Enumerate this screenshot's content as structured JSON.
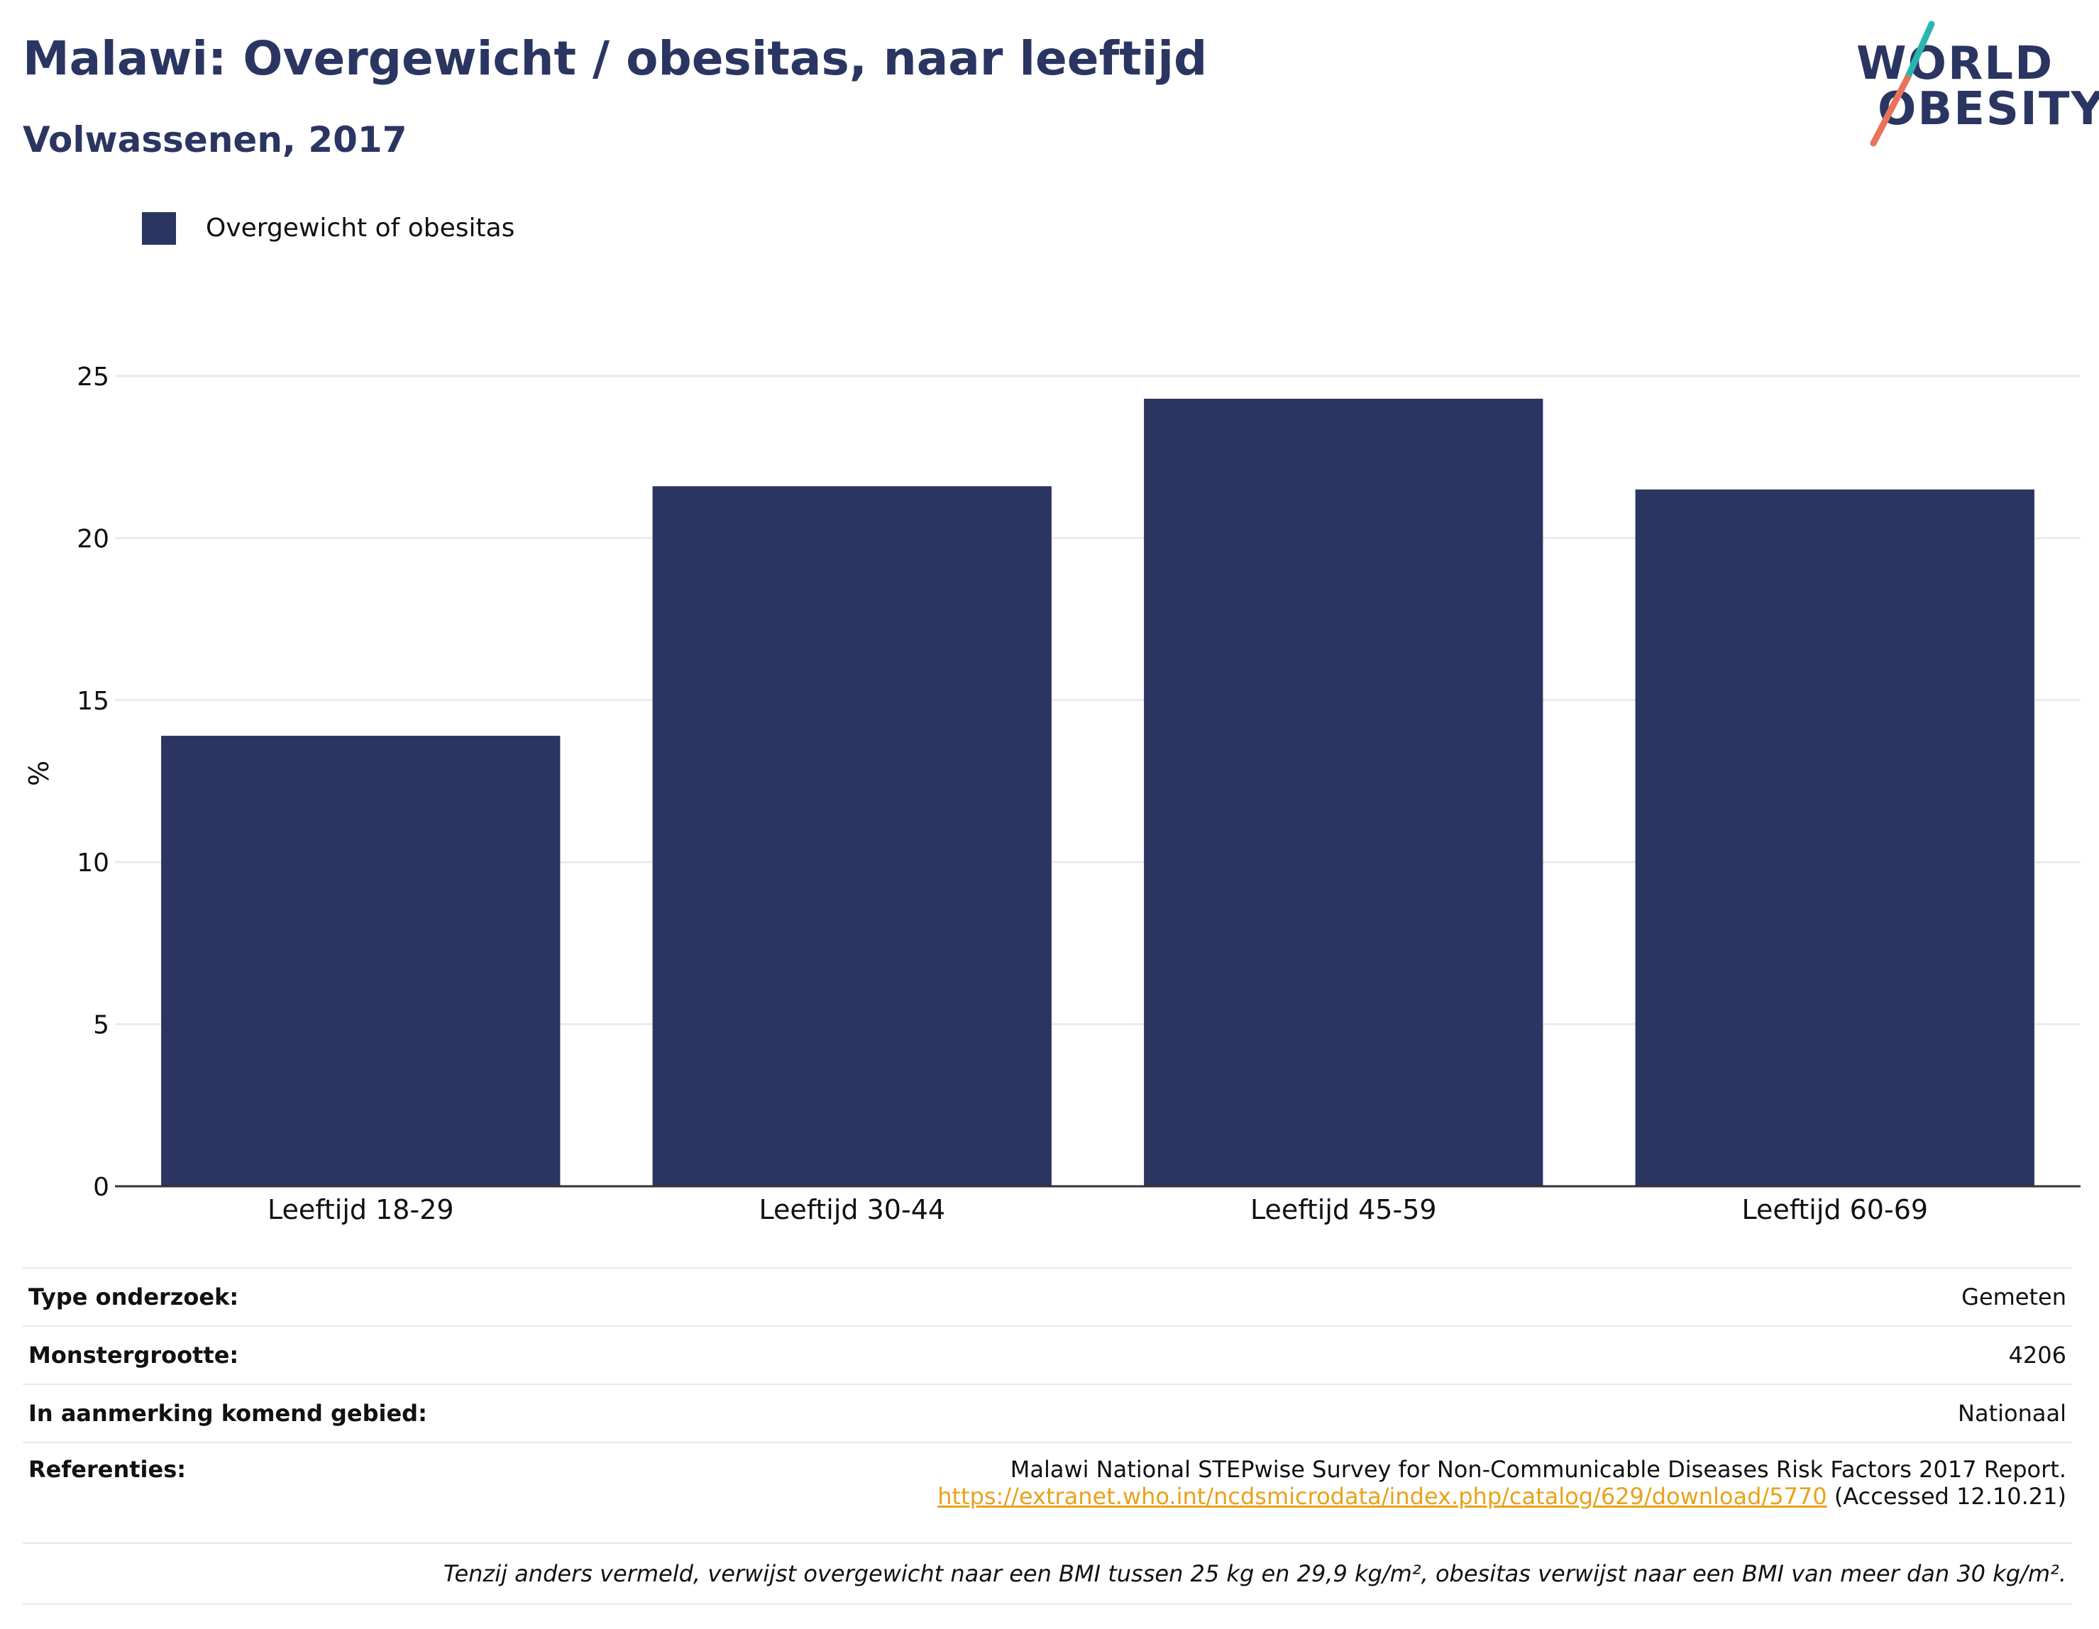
{
  "header": {
    "title": "Malawi: Overgewicht / obesitas, naar leeftijd",
    "subtitle": "Volwassenen, 2017"
  },
  "logo": {
    "line1": "WORLD",
    "line2": "OBESITY",
    "colors": {
      "text": "#2b3561",
      "slash_top": "#2ab6b0",
      "slash_bottom": "#e8735a"
    }
  },
  "legend": {
    "label": "Overgewicht of obesitas",
    "color": "#2b3561"
  },
  "chart_data": {
    "type": "bar",
    "categories": [
      "Leeftijd 18-29",
      "Leeftijd 30-44",
      "Leeftijd 45-59",
      "Leeftijd 60-69"
    ],
    "series": [
      {
        "name": "Overgewicht of obesitas",
        "values": [
          13.9,
          21.6,
          24.3,
          21.5
        ],
        "color": "#2b3561"
      }
    ],
    "title": "Malawi: Overgewicht / obesitas, naar leeftijd",
    "subtitle": "Volwassenen, 2017",
    "xlabel": "",
    "ylabel": "%",
    "ylim": [
      0,
      25
    ],
    "yticks": [
      0,
      5,
      10,
      15,
      20,
      25
    ],
    "grid": true,
    "legend_position": "top-left"
  },
  "meta": {
    "rows": [
      {
        "label": "Type onderzoek:",
        "value": "Gemeten"
      },
      {
        "label": "Monstergrootte:",
        "value": "4206"
      },
      {
        "label": "In aanmerking komend gebied:",
        "value": "Nationaal"
      }
    ],
    "references": {
      "label": "Referenties:",
      "text": "Malawi National STEPwise Survey for Non-Communicable Diseases Risk Factors 2017 Report.",
      "link": "https://extranet.who.int/ncdsmicrodata/index.php/catalog/629/download/5770",
      "accessed": "(Accessed 12.10.21)"
    },
    "footnote": "Tenzij anders vermeld, verwijst overgewicht naar een BMI tussen 25 kg en 29,9 kg/m², obesitas verwijst naar een BMI van meer dan 30 kg/m²."
  }
}
